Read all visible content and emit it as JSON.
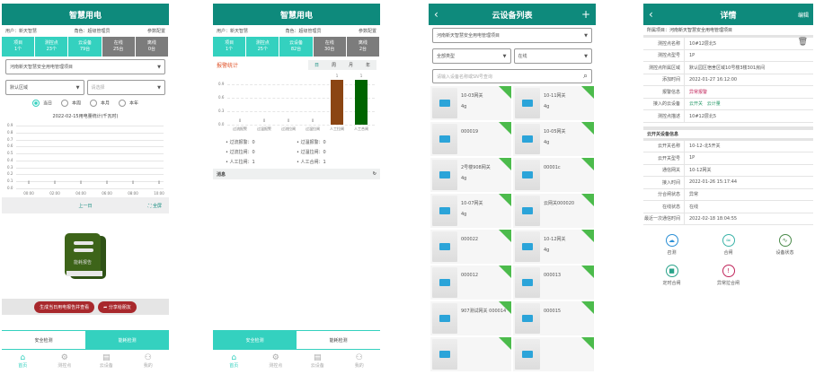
{
  "screen1": {
    "title": "智慧用电",
    "user": "用户：新天智慧",
    "role": "角色：超级管理员",
    "config": "参数配置",
    "stats": [
      {
        "label": "项目",
        "value": "1个"
      },
      {
        "label": "测控点",
        "value": "23个"
      },
      {
        "label": "云设备",
        "value": "79台"
      },
      {
        "label": "在线",
        "value": "25台"
      },
      {
        "label": "离线",
        "value": "0台"
      }
    ],
    "project": "河南新天智慧安全用电管理项目",
    "area": "默认区域",
    "area2_placeholder": "请选择",
    "periods": [
      "当日",
      "本周",
      "本月",
      "本年"
    ],
    "selected_period": "当日",
    "chart_title": "2022-02-15用电量统计(千瓦时)",
    "prev": "上一日",
    "fullscreen": "全屏",
    "report_label": "能耗报告",
    "gen_button": "生成当日用电报告并查看",
    "share_button": "分享给朋友",
    "tabs": [
      "安全检测",
      "能耗检测"
    ],
    "active_tab": "能耗检测"
  },
  "chart_data": [
    {
      "type": "line",
      "title": "2022-02-15用电量统计(千瓦时)",
      "categories": [
        "00:00",
        "02:00",
        "04:00",
        "06:00",
        "08:00",
        "10:00"
      ],
      "values": [
        0,
        0,
        0,
        0,
        0,
        0
      ],
      "y_ticks": [
        "0.0",
        "0.1",
        "0.2",
        "0.3",
        "0.4",
        "0.5",
        "0.6",
        "0.7",
        "0.8",
        "0.9"
      ],
      "ylim": [
        0,
        0.9
      ],
      "grid": true
    },
    {
      "type": "bar",
      "title": "报警统计",
      "categories": [
        "过流报警",
        "过温报警",
        "过流拉闸",
        "过温拉闸",
        "人工拉闸",
        "人工合闸"
      ],
      "values": [
        0,
        0,
        0,
        0,
        1,
        1
      ],
      "colors": [
        "#888",
        "#888",
        "#888",
        "#888",
        "#8b4513",
        "#006400"
      ],
      "y_ticks": [
        "0.0",
        "0.3",
        "0.6",
        "0.9"
      ],
      "ylim": [
        0,
        1
      ],
      "grid": true
    }
  ],
  "screen2": {
    "title": "智慧用电",
    "user": "用户：新天智慧",
    "role": "角色：超级管理员",
    "config": "参数配置",
    "stats": [
      {
        "label": "项目",
        "value": "1个"
      },
      {
        "label": "测控点",
        "value": "25个"
      },
      {
        "label": "云设备",
        "value": "82台"
      },
      {
        "label": "在线",
        "value": "30台"
      },
      {
        "label": "离线",
        "value": "2台"
      }
    ],
    "alarm_title": "报警统计",
    "periods": [
      "日",
      "周",
      "月",
      "年"
    ],
    "selected_period": "日",
    "list": [
      "过流报警：0",
      "过温报警：0",
      "过流拉闸：0",
      "过温拉闸：0",
      "人工拉闸：1",
      "人工合闸：1"
    ],
    "message": "消息",
    "tabs": [
      "安全检测",
      "能耗检测"
    ],
    "active_tab": "安全检测"
  },
  "screen3": {
    "title": "云设备列表",
    "project": "河南新天智慧安全用电管理项目",
    "type": "全部类型",
    "status": "在线",
    "search_placeholder": "请输入设备名称或SN号查询",
    "devices": [
      {
        "name": "10-03网关",
        "sub": "4g"
      },
      {
        "name": "10-11网关",
        "sub": "4g"
      },
      {
        "name": "000019",
        "sub": ""
      },
      {
        "name": "10-05网关",
        "sub": "4g"
      },
      {
        "name": "2号楼908网关",
        "sub": "4g"
      },
      {
        "name": "00001c",
        "sub": ""
      },
      {
        "name": "10-07网关",
        "sub": "4g"
      },
      {
        "name": "云网关000020",
        "sub": ""
      },
      {
        "name": "000022",
        "sub": ""
      },
      {
        "name": "10-12网关",
        "sub": "4g"
      },
      {
        "name": "000012",
        "sub": ""
      },
      {
        "name": "000013",
        "sub": ""
      },
      {
        "name": "907测试网关 000014",
        "sub": ""
      },
      {
        "name": "000015",
        "sub": ""
      },
      {
        "name": "",
        "sub": ""
      },
      {
        "name": "",
        "sub": ""
      }
    ],
    "badge_color": "#4cbb4c"
  },
  "screen4": {
    "title": "详情",
    "edit": "编辑",
    "project": "所属项目：河南新天智慧安全用电管理项目",
    "fields": [
      {
        "k": "测控点名称",
        "v": "10#12层北5"
      },
      {
        "k": "测控点型号",
        "v": "1P"
      },
      {
        "k": "测控点所属区域",
        "v": "默认园区宿舍区域10号楼3楼301房间"
      },
      {
        "k": "添加时间",
        "v": "2022-01-27 16:12:00"
      },
      {
        "k": "报警信息",
        "v": "异常报警"
      },
      {
        "k": "接入的云设备",
        "v": "云开关",
        "v2": "云计量"
      },
      {
        "k": "测控点描述",
        "v": "10#12层北5"
      }
    ],
    "section": "云开关设备信息",
    "switch_fields": [
      {
        "k": "云开关名称",
        "v": "10-12-北5开关"
      },
      {
        "k": "云开关型号",
        "v": "1P"
      },
      {
        "k": "通信网关",
        "v": "10-12网关"
      },
      {
        "k": "接入时间",
        "v": "2022-01-26 15:17:44"
      },
      {
        "k": "分合闸状态",
        "v": "异常"
      },
      {
        "k": "在线状态",
        "v": "在线"
      },
      {
        "k": "最近一次通信时间",
        "v": "2022-02-18 18:04:55"
      }
    ],
    "actions": [
      {
        "label": "召测",
        "icon": "cloud-refresh-icon",
        "color": "#2a8fd6"
      },
      {
        "label": "合闸",
        "icon": "waves-icon",
        "color": "#3bb3a8"
      },
      {
        "label": "设备状态",
        "icon": "wave-chart-icon",
        "color": "#4a8a4a"
      },
      {
        "label": "定时合闸",
        "icon": "timer-icon",
        "color": "#2aa38a"
      },
      {
        "label": "异常拉合闸",
        "icon": "alert-icon",
        "color": "#c0245a"
      }
    ]
  },
  "nav": [
    "首页",
    "测控点",
    "云设备",
    "我的"
  ],
  "colors": {
    "header": "#0e8a7c",
    "accent": "#34d1bf",
    "offline": "#7c7c7c",
    "button": "#a8282c"
  }
}
